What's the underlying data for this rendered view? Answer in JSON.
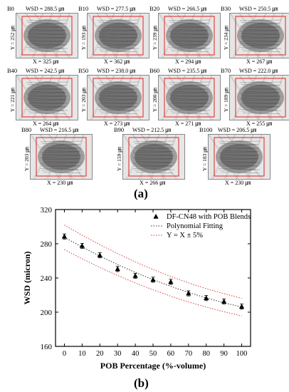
{
  "panel_a": {
    "caption": "(a)",
    "images": [
      {
        "tag": "B0",
        "wsd": "WSD = 288.5 ㎛",
        "x": "X = 325 ㎛",
        "y": "Y = 252 ㎛"
      },
      {
        "tag": "B10",
        "wsd": "WSD = 277.5 ㎛",
        "x": "X = 362 ㎛",
        "y": "Y = 193 ㎛"
      },
      {
        "tag": "B20",
        "wsd": "WSD = 266.5 ㎛",
        "x": "X = 294 ㎛",
        "y": "Y = 239 ㎛"
      },
      {
        "tag": "B30",
        "wsd": "WSD = 250.5 ㎛",
        "x": "X = 267 ㎛",
        "y": "Y = 234 ㎛"
      },
      {
        "tag": "B40",
        "wsd": "WSD = 242.5 ㎛",
        "x": "X = 264 ㎛",
        "y": "Y = 221 ㎛"
      },
      {
        "tag": "B50",
        "wsd": "WSD = 238.0 ㎛",
        "x": "X = 273 ㎛",
        "y": "Y = 203 ㎛"
      },
      {
        "tag": "B60",
        "wsd": "WSD = 235.5 ㎛",
        "x": "X = 271 ㎛",
        "y": "Y = 200 ㎛"
      },
      {
        "tag": "B70",
        "wsd": "WSD = 222.0 ㎛",
        "x": "X = 255 ㎛",
        "y": "Y = 189 ㎛"
      },
      {
        "tag": "B80",
        "wsd": "WSD = 216.5 ㎛",
        "x": "X = 230 ㎛",
        "y": "Y = 203 ㎛"
      },
      {
        "tag": "B90",
        "wsd": "WSD = 212.5 ㎛",
        "x": "X = 266 ㎛",
        "y": "Y = 159 ㎛"
      },
      {
        "tag": "B100",
        "wsd": "WSD = 206.5 ㎛",
        "x": "X = 230 ㎛",
        "y": "Y = 183 ㎛"
      }
    ]
  },
  "chart_data": {
    "type": "scatter",
    "caption": "(b)",
    "xlabel": "POB Percentage (%-volume)",
    "ylabel": "WSD (micron)",
    "xlim": [
      -5,
      105
    ],
    "ylim": [
      160,
      320
    ],
    "xticks": [
      0,
      10,
      20,
      30,
      40,
      50,
      60,
      70,
      80,
      90,
      100
    ],
    "yticks": [
      160,
      200,
      240,
      280,
      320
    ],
    "legend_position": "top-right",
    "series": [
      {
        "name": "DF-CN48 with POB Blends",
        "style": "triangle-marker",
        "color": "#000000",
        "x": [
          0,
          10,
          20,
          30,
          40,
          50,
          60,
          70,
          80,
          90,
          100
        ],
        "y": [
          288.5,
          277.5,
          266.5,
          250.5,
          242.5,
          238.0,
          235.5,
          222.0,
          216.5,
          212.5,
          206.5
        ],
        "error": [
          3,
          3,
          3,
          3,
          3,
          3,
          3,
          3,
          3,
          3,
          3
        ]
      },
      {
        "name": "Polynomial Fitting",
        "style": "dotted",
        "color": "#333333",
        "x": [
          0,
          10,
          20,
          30,
          40,
          50,
          60,
          70,
          80,
          90,
          100
        ],
        "y": [
          287.5,
          276.2,
          265.6,
          255.7,
          246.5,
          238.0,
          230.2,
          223.1,
          216.7,
          211.0,
          206.0
        ]
      },
      {
        "name": "Y = X  ±  5%",
        "style": "dotted",
        "color": "#d04040",
        "bands": [
          {
            "x": [
              0,
              10,
              20,
              30,
              40,
              50,
              60,
              70,
              80,
              90,
              100
            ],
            "y": [
              301.9,
              290.0,
              278.9,
              268.5,
              258.8,
              249.9,
              241.7,
              234.3,
              227.5,
              221.6,
              216.3
            ]
          },
          {
            "x": [
              0,
              10,
              20,
              30,
              40,
              50,
              60,
              70,
              80,
              90,
              100
            ],
            "y": [
              273.1,
              262.4,
              252.3,
              242.9,
              234.2,
              226.1,
              218.7,
              211.9,
              205.9,
              200.5,
              195.7
            ]
          }
        ]
      }
    ]
  }
}
